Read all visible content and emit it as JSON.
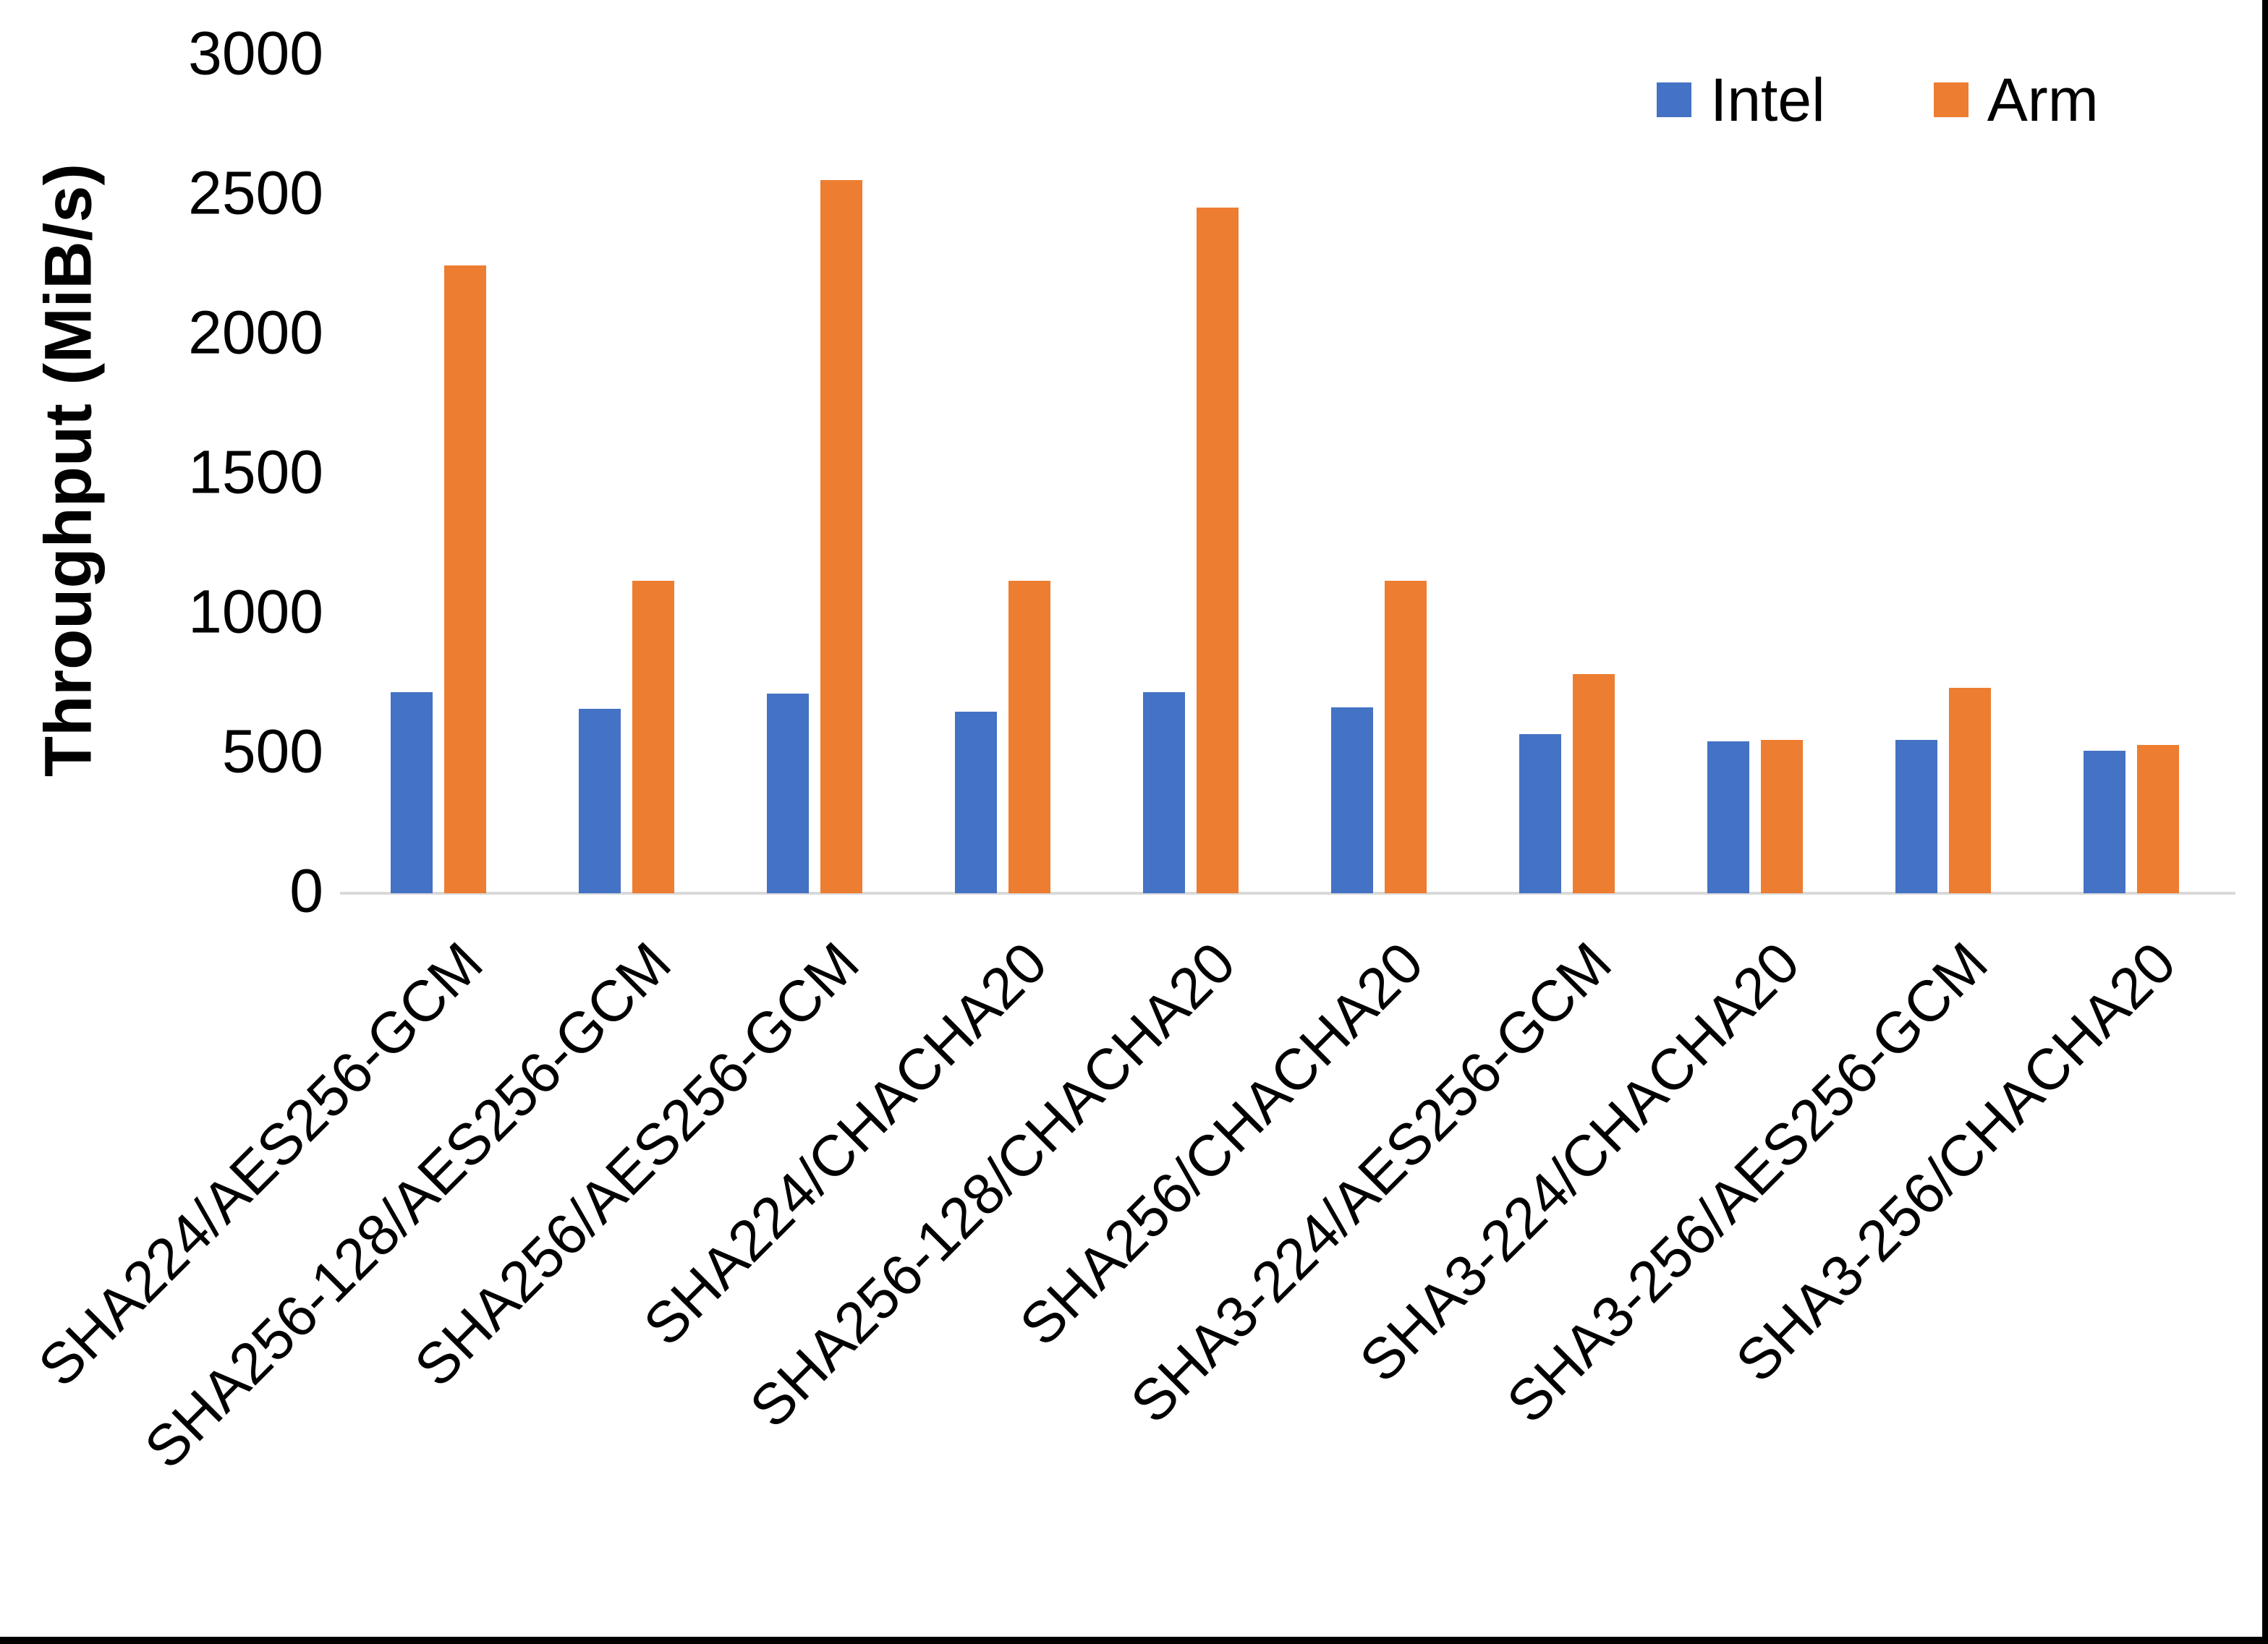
{
  "figure": {
    "background": "#ffffff",
    "frame_border_color": "#000000",
    "axis_line_color": "#d9d9d9",
    "text_color": "#000000"
  },
  "legend": [
    {
      "label": "Intel",
      "color": "#4472c4"
    },
    {
      "label": "Arm",
      "color": "#ed7d31"
    }
  ],
  "chart_data": {
    "type": "bar",
    "title": "",
    "xlabel": "",
    "ylabel": "Throughput (MiB/s)",
    "ylim": [
      0,
      3000
    ],
    "yticks": [
      0,
      500,
      1000,
      1500,
      2000,
      2500,
      3000
    ],
    "grid": false,
    "legend_position": "top-right",
    "categories": [
      "SHA224/AES256-GCM",
      "SHA256-128/AES256-GCM",
      "SHA256/AES256-GCM",
      "SHA224/CHACHA20",
      "SHA256-128/CHACHA20",
      "SHA256/CHACHA20",
      "SHA3-224/AES256-GCM",
      "SHA3-224/CHACHA20",
      "SHA3-256/AES256-GCM",
      "SHA3-256/CHACHA20"
    ],
    "series": [
      {
        "name": "Intel",
        "color": "#4472c4",
        "values": [
          720,
          660,
          715,
          650,
          720,
          665,
          570,
          545,
          550,
          510
        ]
      },
      {
        "name": "Arm",
        "color": "#ed7d31",
        "values": [
          2250,
          1120,
          2555,
          1120,
          2455,
          1120,
          785,
          550,
          735,
          530
        ]
      }
    ]
  }
}
